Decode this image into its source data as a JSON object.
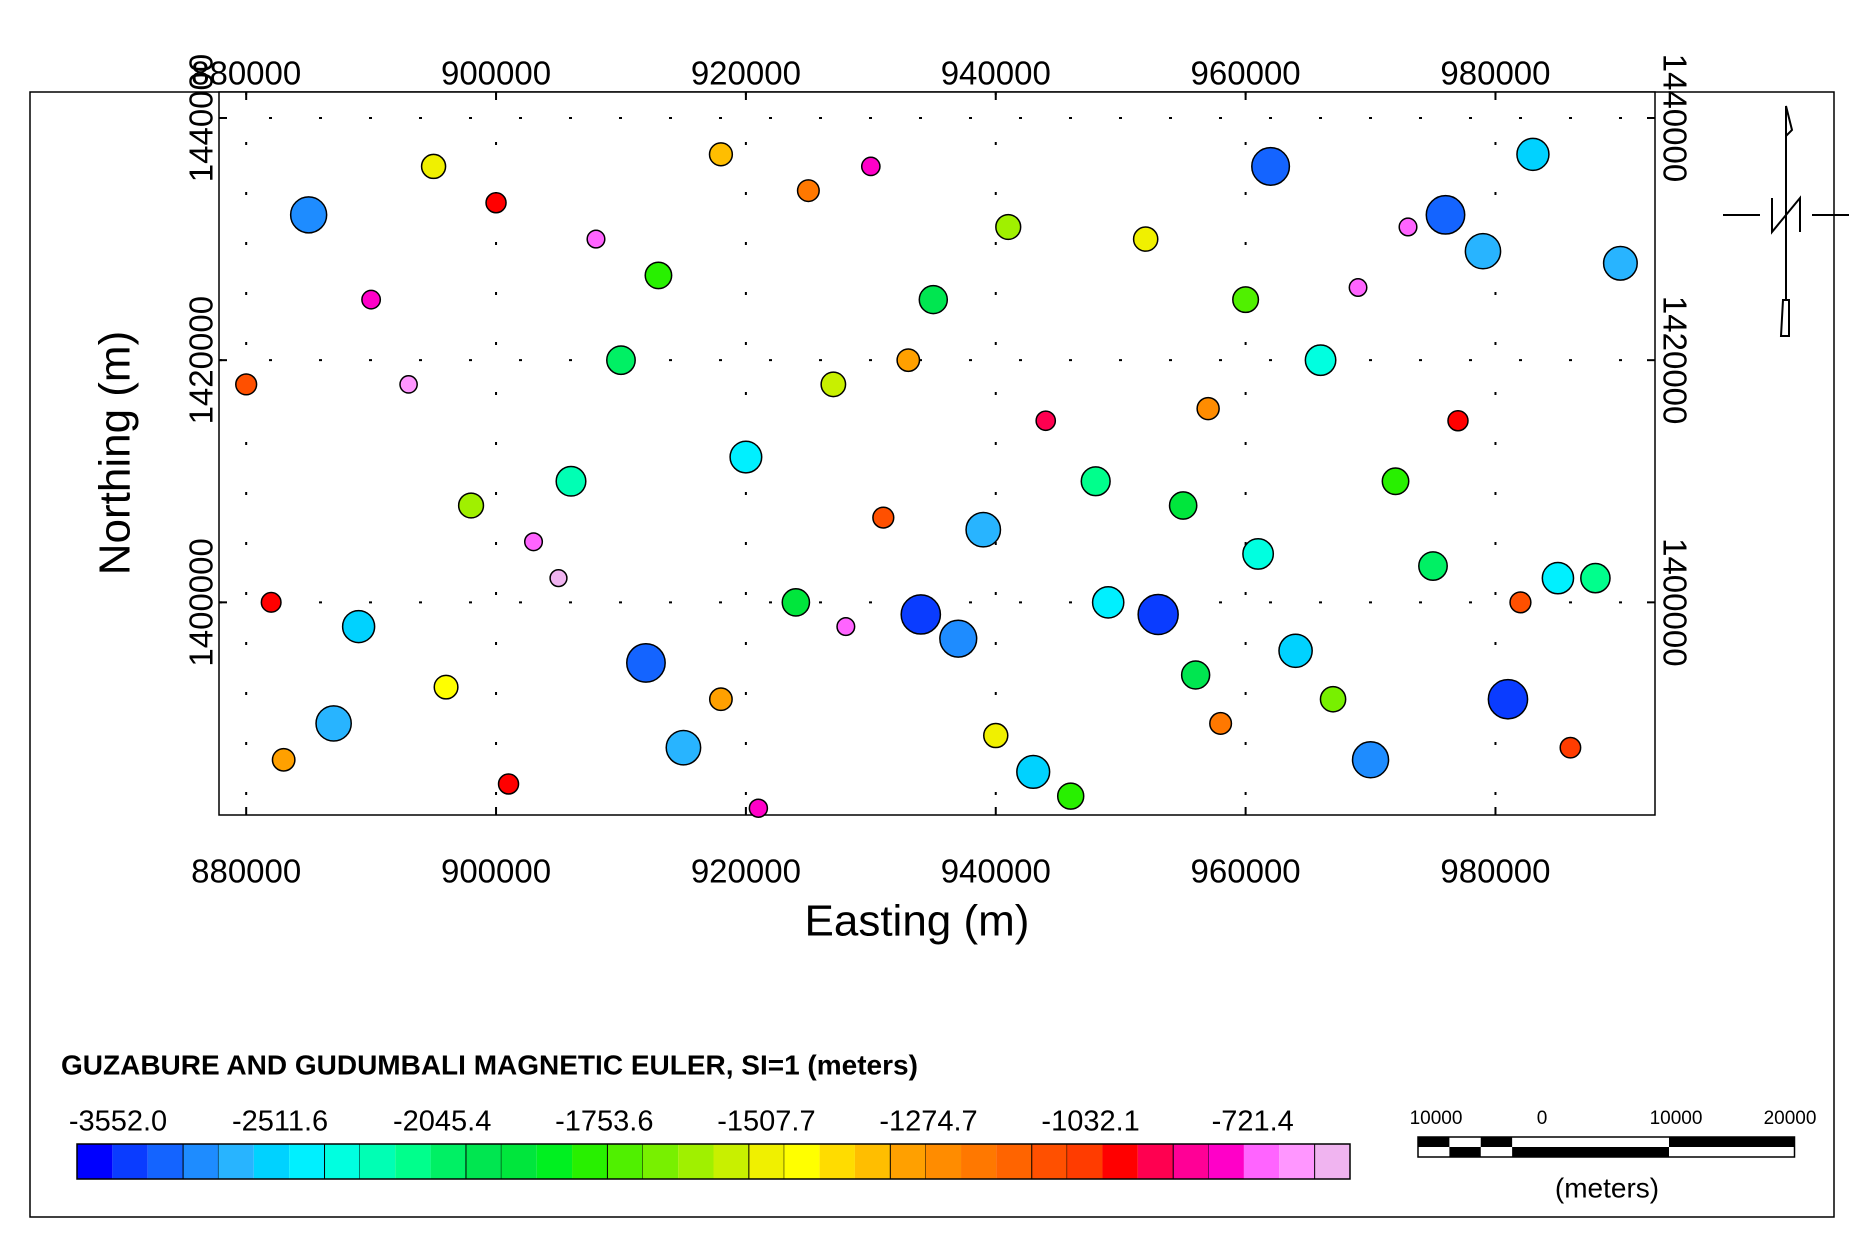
{
  "chart_data": {
    "type": "scatter",
    "title": "GUZABURE AND GUDUMBALI MAGNETIC EULER, SI=1 (meters)",
    "x_label": "Easting (m)",
    "y_label": "Northing (m)",
    "xlim": [
      877824,
      992770
    ],
    "ylim": [
      1382439,
      1442146
    ],
    "xticks": [
      880000,
      900000,
      920000,
      940000,
      960000,
      980000
    ],
    "yticks": [
      1400000,
      1420000,
      1440000
    ],
    "grid": true,
    "points": {
      "x": [
        885000,
        890000,
        893000,
        898000,
        903000,
        905000,
        906000,
        912000,
        915000,
        918000,
        921000,
        924000,
        928000,
        931000,
        934000,
        937000,
        940000,
        943000,
        946000,
        949000,
        953000,
        956000,
        958000,
        961000,
        964000,
        967000,
        970000,
        973000,
        976000,
        979000,
        982000,
        985000,
        988000,
        990000,
        880000,
        882000,
        883000,
        887000,
        895000,
        900000,
        908000,
        913000,
        918000,
        925000,
        930000,
        935000,
        941000,
        944000,
        948000,
        952000,
        957000,
        962000,
        966000,
        969000,
        972000,
        977000,
        981000,
        986000,
        889000,
        896000,
        901000,
        910000,
        920000,
        927000,
        933000,
        939000,
        955000,
        960000,
        975000,
        983000
      ],
      "y": [
        1432000,
        1425000,
        1418000,
        1408000,
        1405000,
        1402000,
        1410000,
        1395000,
        1388000,
        1392000,
        1383000,
        1400000,
        1398000,
        1407000,
        1399000,
        1397000,
        1389000,
        1386000,
        1384000,
        1400000,
        1399000,
        1394000,
        1390000,
        1404000,
        1396000,
        1392000,
        1387000,
        1431000,
        1432000,
        1429000,
        1400000,
        1402000,
        1402000,
        1428000,
        1418000,
        1400000,
        1387000,
        1390000,
        1436000,
        1433000,
        1430000,
        1427000,
        1437000,
        1434000,
        1436000,
        1425000,
        1431000,
        1415000,
        1410000,
        1430000,
        1416000,
        1436000,
        1420000,
        1426000,
        1410000,
        1415000,
        1392000,
        1388000,
        1398000,
        1393000,
        1385000,
        1420000,
        1412000,
        1418000,
        1420000,
        1406000,
        1408000,
        1425000,
        1403000,
        1437000
      ],
      "depth": [
        -3000,
        -800,
        -650,
        -1600,
        -700,
        -600,
        -2200,
        -3300,
        -2800,
        -1300,
        -750,
        -1900,
        -700,
        -1100,
        -3400,
        -3100,
        -1500,
        -2600,
        -1750,
        -2400,
        -3500,
        -2000,
        -1200,
        -2300,
        -2650,
        -1650,
        -3000,
        -700,
        -3300,
        -2900,
        -1100,
        -2400,
        -2150,
        -2700,
        -1100,
        -950,
        -1300,
        -2900,
        -1500,
        -1000,
        -700,
        -1800,
        -1350,
        -1200,
        -780,
        -2000,
        -1600,
        -900,
        -2100,
        -1520,
        -1250,
        -3200,
        -2300,
        -680,
        -1800,
        -1000,
        -3400,
        -1050,
        -2500,
        -1450,
        -1000,
        -2050,
        -2450,
        -1550,
        -1300,
        -2800,
        -1900,
        -1700,
        -2050,
        -2500
      ]
    },
    "colorbar": {
      "levels": [
        {
          "value": -3552,
          "label": "-3552.0"
        },
        -2511.6,
        -2045.4,
        -1753.6,
        -1507.7,
        -1274.7,
        -1032.1,
        -721.4
      ],
      "colors": [
        "#0000ff",
        "#0a3cff",
        "#1464ff",
        "#1e8cff",
        "#28b4ff",
        "#00d2ff",
        "#00f0ff",
        "#00ffe0",
        "#00ffb4",
        "#00ff8c",
        "#00f064",
        "#00e650",
        "#00e63c",
        "#00f020",
        "#28f000",
        "#50f000",
        "#78f000",
        "#a0f000",
        "#c8f000",
        "#f0f000",
        "#ffff00",
        "#ffdc00",
        "#ffbe00",
        "#ffa000",
        "#ff8c00",
        "#ff7800",
        "#ff6400",
        "#ff5000",
        "#ff3c00",
        "#ff0000",
        "#ff0050",
        "#ff0096",
        "#ff00c8",
        "#ff64ff",
        "#ff96ff",
        "#f0b4f0"
      ]
    },
    "scale_bar": {
      "labels": [
        "10000",
        "0",
        "10000",
        "20000"
      ],
      "unit": "(meters)"
    }
  }
}
